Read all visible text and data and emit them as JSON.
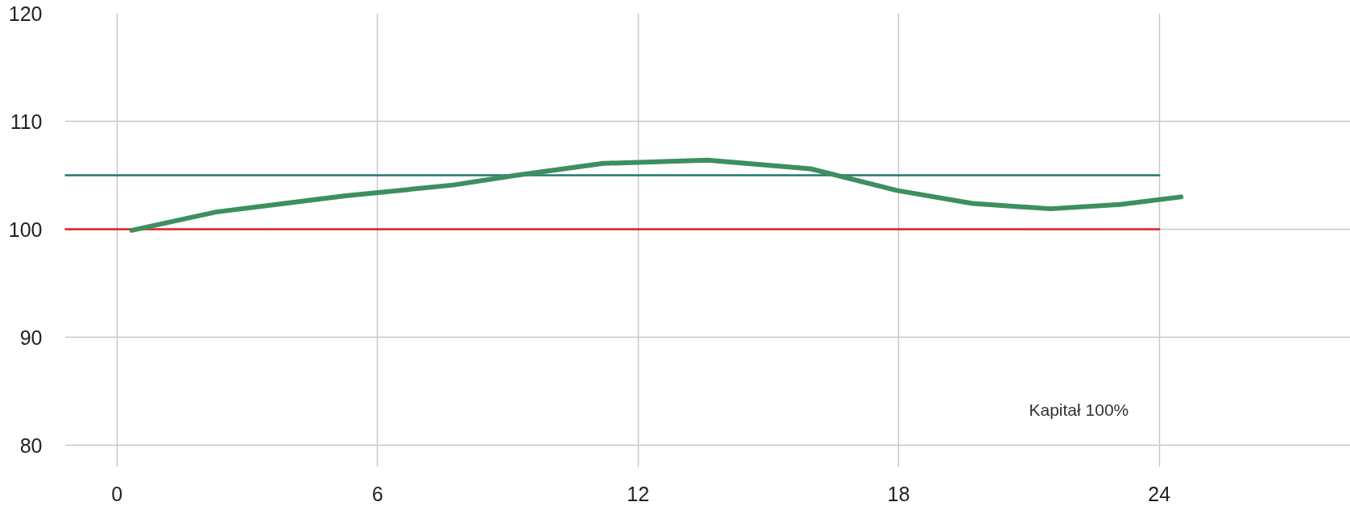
{
  "chart_data": {
    "type": "line",
    "xlim": [
      -1.2,
      28.4
    ],
    "ylim": [
      78,
      120
    ],
    "xticks": [
      0,
      6,
      12,
      18,
      24
    ],
    "yticks": [
      80,
      90,
      100,
      110,
      120
    ],
    "grid": true,
    "marker": "none",
    "line_style": "solid",
    "series": [
      {
        "color": "#e31e24",
        "x": [
          -1.2,
          24
        ],
        "values": [
          100,
          100
        ]
      },
      {
        "color": "#1f7a6e",
        "x": [
          -1.2,
          24
        ],
        "values": [
          105,
          105
        ]
      },
      {
        "color": "#3d8f5f",
        "x": [
          0.34,
          2.28,
          5.26,
          7.74,
          9.2,
          11.2,
          13.6,
          15.97,
          17.96,
          19.7,
          21.5,
          23.1,
          24.5
        ],
        "values": [
          99.9,
          101.6,
          103.1,
          104.1,
          105.0,
          106.1,
          106.4,
          105.6,
          103.6,
          102.4,
          101.9,
          102.3,
          103.0
        ]
      }
    ],
    "annotations": [
      "Kapitał 100%"
    ]
  }
}
